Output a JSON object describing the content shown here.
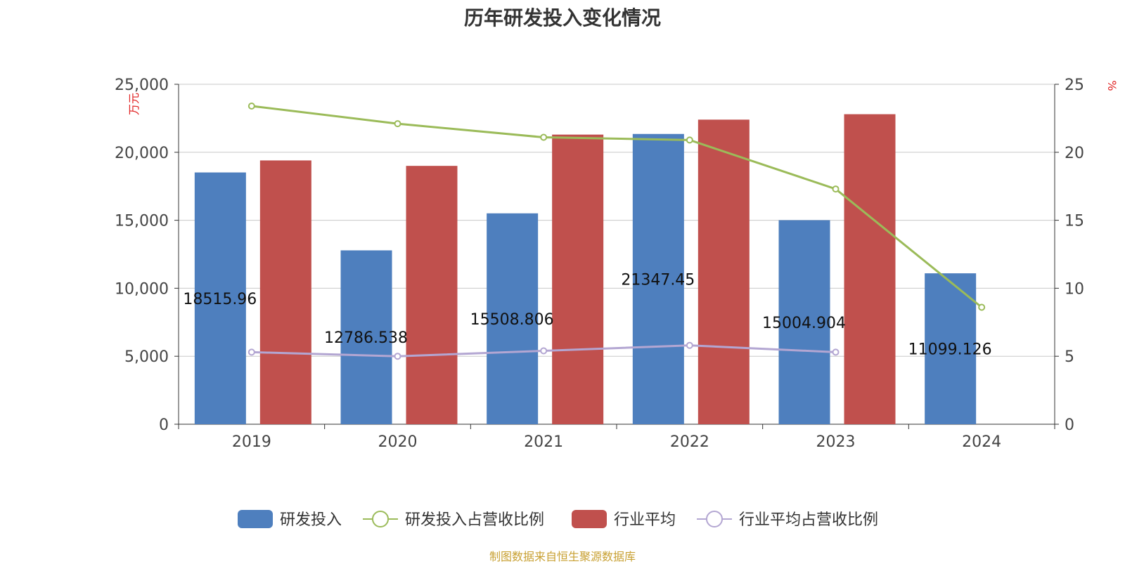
{
  "title": "历年研发投入变化情况",
  "footer": "制图数据来自恒生聚源数据库",
  "colors": {
    "rd": "#4e7fbe",
    "industry": "#c0504d",
    "rd_ratio": "#9bbb59",
    "industry_ratio": "#b3a6d2",
    "grid": "#c8c8c8",
    "axis": "#333333"
  },
  "chart_data": {
    "type": "bar",
    "categories": [
      "2019",
      "2020",
      "2021",
      "2022",
      "2023",
      "2024"
    ],
    "y_left": {
      "label": "万元",
      "ylim": [
        0,
        25000
      ],
      "ticks": [
        "0",
        "5,000",
        "10,000",
        "15,000",
        "20,000",
        "25,000"
      ],
      "tick_values": [
        0,
        5000,
        10000,
        15000,
        20000,
        25000
      ]
    },
    "y_right": {
      "label": "%",
      "ylim": [
        0,
        25
      ],
      "ticks": [
        "0",
        "5",
        "10",
        "15",
        "20",
        "25"
      ],
      "tick_values": [
        0,
        5,
        10,
        15,
        20,
        25
      ]
    },
    "grid": true,
    "legend_position": "bottom",
    "series": [
      {
        "name": "研发投入",
        "type": "bar",
        "axis": "left",
        "color_key": "rd",
        "values": [
          18515.96,
          12786.538,
          15508.806,
          21347.45,
          15004.904,
          11099.126
        ],
        "labels": [
          "18515.96",
          "12786.538",
          "15508.806",
          "21347.45",
          "15004.904",
          "11099.126"
        ]
      },
      {
        "name": "研发投入占营收比例",
        "type": "line",
        "axis": "right",
        "color_key": "rd_ratio",
        "values": [
          23.4,
          22.1,
          21.1,
          20.9,
          17.3,
          8.6
        ]
      },
      {
        "name": "行业平均",
        "type": "bar",
        "axis": "left",
        "color_key": "industry",
        "values": [
          19400,
          19000,
          21300,
          22400,
          22800,
          null
        ]
      },
      {
        "name": "行业平均占营收比例",
        "type": "line",
        "axis": "right",
        "color_key": "industry_ratio",
        "values": [
          5.3,
          5.0,
          5.4,
          5.8,
          5.3,
          null
        ]
      }
    ]
  }
}
